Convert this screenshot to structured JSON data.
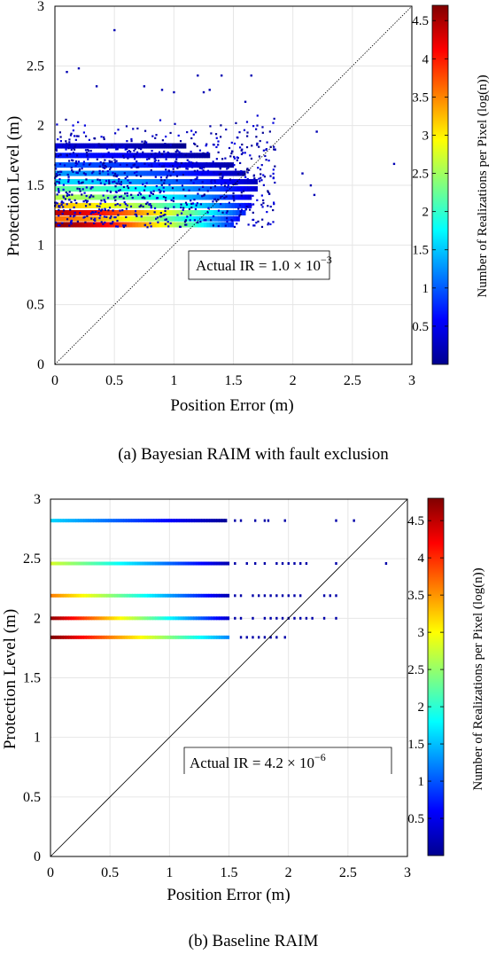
{
  "chart_data": [
    {
      "panel_id": "a",
      "type": "heatmap-scatter",
      "caption": "(a)  Bayesian RAIM with fault exclusion",
      "xlabel": "Position Error (m)",
      "ylabel": "Protection Level (m)",
      "xlim": [
        0,
        3
      ],
      "ylim": [
        0,
        3
      ],
      "xticks": [
        "0",
        "0.5",
        "1",
        "1.5",
        "2",
        "2.5",
        "3"
      ],
      "yticks": [
        "0",
        "0.5",
        "1",
        "1.5",
        "2",
        "2.5",
        "3"
      ],
      "grid": true,
      "reference_line": {
        "from": [
          0,
          0
        ],
        "to": [
          3,
          3
        ]
      },
      "annotation": {
        "prefix": "Actual IR = 1.0 × 10",
        "exponent": "−3"
      },
      "colorbar": {
        "label": "Number of Realizations per Pixel (log(n))",
        "ticks": [
          "0.5",
          "1",
          "1.5",
          "2",
          "2.5",
          "3",
          "3.5",
          "4",
          "4.5"
        ],
        "range": [
          0,
          4.7
        ]
      },
      "bands": [
        {
          "y": 1.17,
          "x_end": 1.5,
          "log_n": 4.6
        },
        {
          "y": 1.22,
          "x_end": 1.55,
          "log_n": 3.6
        },
        {
          "y": 1.27,
          "x_end": 1.6,
          "log_n": 4.4
        },
        {
          "y": 1.33,
          "x_end": 1.65,
          "log_n": 3.2
        },
        {
          "y": 1.4,
          "x_end": 1.65,
          "log_n": 2.6
        },
        {
          "y": 1.47,
          "x_end": 1.7,
          "log_n": 2.2
        },
        {
          "y": 1.53,
          "x_end": 1.7,
          "log_n": 1.6
        },
        {
          "y": 1.6,
          "x_end": 1.6,
          "log_n": 1.3
        },
        {
          "y": 1.67,
          "x_end": 1.5,
          "log_n": 1.0
        },
        {
          "y": 1.75,
          "x_end": 1.3,
          "log_n": 0.7
        },
        {
          "y": 1.83,
          "x_end": 1.1,
          "log_n": 0.4
        }
      ],
      "outliers": [
        [
          0.5,
          2.8
        ],
        [
          0.1,
          2.45
        ],
        [
          0.2,
          2.48
        ],
        [
          0.35,
          2.33
        ],
        [
          0.75,
          2.33
        ],
        [
          1.2,
          2.42
        ],
        [
          1.25,
          2.28
        ],
        [
          1.3,
          2.3
        ],
        [
          1.4,
          2.42
        ],
        [
          1.65,
          2.42
        ],
        [
          0.9,
          2.3
        ],
        [
          1.0,
          2.28
        ],
        [
          2.2,
          1.95
        ],
        [
          2.85,
          1.68
        ],
        [
          2.08,
          1.6
        ],
        [
          2.15,
          1.5
        ],
        [
          2.18,
          1.42
        ],
        [
          1.6,
          2.2
        ],
        [
          1.7,
          1.85
        ],
        [
          1.85,
          1.8
        ]
      ]
    },
    {
      "panel_id": "b",
      "type": "heatmap-scatter",
      "caption": "(b)  Baseline RAIM",
      "xlabel": "Position Error (m)",
      "ylabel": "Protection Level (m)",
      "xlim": [
        0,
        3
      ],
      "ylim": [
        0,
        3
      ],
      "xticks": [
        "0",
        "0.5",
        "1",
        "1.5",
        "2",
        "2.5",
        "3"
      ],
      "yticks": [
        "0",
        "0.5",
        "1",
        "1.5",
        "2",
        "2.5",
        "3"
      ],
      "grid": true,
      "reference_line": {
        "from": [
          0,
          0
        ],
        "to": [
          3,
          3
        ]
      },
      "annotation": {
        "prefix": "Actual IR = 4.2 × 10",
        "exponent": "−6"
      },
      "colorbar": {
        "label": "Number of Realizations per Pixel (log(n))",
        "ticks": [
          "0.5",
          "1",
          "1.5",
          "2",
          "2.5",
          "3",
          "3.5",
          "4",
          "4.5"
        ],
        "range": [
          0,
          4.8
        ]
      },
      "lines": [
        {
          "y": 2.82,
          "x_end": 1.48,
          "log_n_start": 1.6,
          "log_n_end": 0.1,
          "sparse": [
            1.55,
            1.6,
            1.72,
            1.8,
            1.83,
            1.97,
            2.4,
            2.55
          ]
        },
        {
          "y": 2.46,
          "x_end": 1.5,
          "log_n_start": 2.8,
          "log_n_end": 0.2,
          "sparse": [
            1.55,
            1.65,
            1.72,
            1.8,
            1.9,
            1.95,
            2.0,
            2.05,
            2.1,
            2.15,
            2.4,
            2.82
          ]
        },
        {
          "y": 2.19,
          "x_end": 1.5,
          "log_n_start": 3.6,
          "log_n_end": 0.2,
          "sparse": [
            1.55,
            1.6,
            1.7,
            1.75,
            1.8,
            1.85,
            1.9,
            1.95,
            2.0,
            2.05,
            2.1,
            2.3,
            2.35,
            2.4
          ]
        },
        {
          "y": 2.0,
          "x_end": 1.5,
          "log_n_start": 4.7,
          "log_n_end": 0.3,
          "sparse": [
            1.55,
            1.6,
            1.7,
            1.8,
            1.85,
            1.9,
            1.95,
            2.0,
            2.05,
            2.1,
            2.15,
            2.2,
            2.3,
            2.4
          ]
        },
        {
          "y": 1.84,
          "x_end": 1.5,
          "log_n_start": 4.8,
          "log_n_end": 1.2,
          "sparse": [
            1.6,
            1.65,
            1.7,
            1.75,
            1.8,
            1.85,
            1.9,
            1.97
          ]
        }
      ]
    }
  ]
}
